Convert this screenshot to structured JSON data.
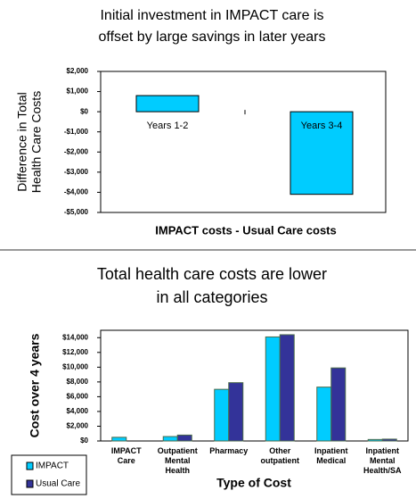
{
  "chart_data": [
    {
      "type": "bar",
      "title": [
        "Initial investment in IMPACT care is",
        "offset by large savings in later years"
      ],
      "y_label": [
        "Difference in Total",
        "Health Care Costs"
      ],
      "x_label": "IMPACT costs - Usual Care costs",
      "categories": [
        "Years 1-2",
        "Years 3-4"
      ],
      "values": [
        800,
        -4100
      ],
      "color": "#00ccff",
      "ylim": [
        -5000,
        2000
      ],
      "yticks": [
        {
          "value": -5000,
          "label": "-$5,000"
        },
        {
          "value": -4000,
          "label": "-$4,000"
        },
        {
          "value": -3000,
          "label": "-$3,000"
        },
        {
          "value": -2000,
          "label": "-$2,000"
        },
        {
          "value": -1000,
          "label": "-$1,000"
        },
        {
          "value": 0,
          "label": "$0"
        },
        {
          "value": 1000,
          "label": "$1,000"
        },
        {
          "value": 2000,
          "label": "$2,000"
        }
      ]
    },
    {
      "type": "grouped-bar",
      "title": [
        "Total health care costs are lower",
        "in all categories"
      ],
      "y_label": "Cost over 4 years",
      "x_label": "Type of Cost",
      "categories": [
        "IMPACT Care",
        "Outpatient Mental Health",
        "Pharmacy",
        "Other outpatient",
        "Inpatient Medical",
        "Inpatient Mental Health/SA"
      ],
      "series": [
        {
          "name": "IMPACT",
          "color": "#00ccff",
          "values": [
            500,
            600,
            7000,
            14100,
            7300,
            200
          ]
        },
        {
          "name": "Usual Care",
          "color": "#333399",
          "values": [
            0,
            800,
            7900,
            14400,
            9900,
            250
          ]
        }
      ],
      "ylim": [
        0,
        15000
      ],
      "yticks": [
        {
          "value": 0,
          "label": "$0"
        },
        {
          "value": 2000,
          "label": "$2,000"
        },
        {
          "value": 4000,
          "label": "$4,000"
        },
        {
          "value": 6000,
          "label": "$6,000"
        },
        {
          "value": 8000,
          "label": "$8,000"
        },
        {
          "value": 10000,
          "label": "$10,000"
        },
        {
          "value": 12000,
          "label": "$12,000"
        },
        {
          "value": 14000,
          "label": "$14,000"
        }
      ]
    }
  ]
}
